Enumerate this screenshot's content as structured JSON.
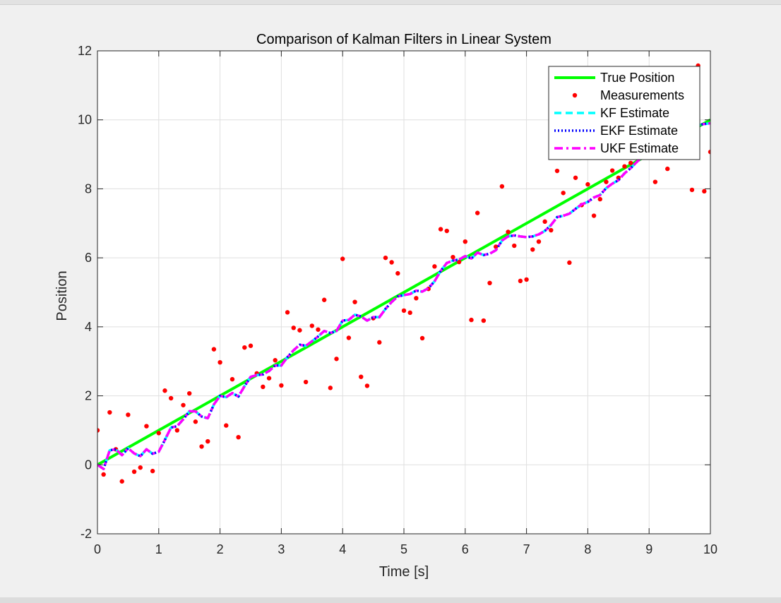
{
  "chart_data": {
    "type": "line",
    "title": "Comparison of Kalman Filters in Linear System",
    "xlabel": "Time [s]",
    "ylabel": "Position",
    "xlim": [
      0,
      10
    ],
    "ylim": [
      -2,
      12
    ],
    "xticks": [
      0,
      1,
      2,
      3,
      4,
      5,
      6,
      7,
      8,
      9,
      10
    ],
    "yticks": [
      -2,
      0,
      2,
      4,
      6,
      8,
      10,
      12
    ],
    "grid": true,
    "legend_position": "top-right",
    "series": [
      {
        "name": "True Position",
        "color": "#00ff00",
        "style": "solid",
        "x": [
          0,
          10
        ],
        "y": [
          0,
          10
        ]
      },
      {
        "name": "Measurements",
        "color": "#ff0000",
        "style": "markers",
        "x": [
          0.0,
          0.1,
          0.2,
          0.3,
          0.4,
          0.5,
          0.6,
          0.7,
          0.8,
          0.9,
          1.0,
          1.1,
          1.2,
          1.3,
          1.4,
          1.5,
          1.6,
          1.7,
          1.8,
          1.9,
          2.0,
          2.1,
          2.2,
          2.3,
          2.4,
          2.5,
          2.6,
          2.7,
          2.8,
          2.9,
          3.0,
          3.1,
          3.2,
          3.3,
          3.4,
          3.5,
          3.6,
          3.7,
          3.8,
          3.9,
          4.0,
          4.1,
          4.2,
          4.3,
          4.4,
          4.5,
          4.6,
          4.7,
          4.8,
          4.9,
          5.0,
          5.1,
          5.2,
          5.3,
          5.4,
          5.5,
          5.6,
          5.7,
          5.8,
          5.9,
          6.0,
          6.1,
          6.2,
          6.3,
          6.4,
          6.5,
          6.6,
          6.7,
          6.8,
          6.9,
          7.0,
          7.1,
          7.2,
          7.3,
          7.4,
          7.5,
          7.6,
          7.7,
          7.8,
          7.9,
          8.0,
          8.1,
          8.2,
          8.3,
          8.4,
          8.5,
          8.6,
          8.7,
          8.8,
          8.9,
          9.0,
          9.1,
          9.2,
          9.3,
          9.4,
          9.5,
          9.6,
          9.7,
          9.8,
          9.9,
          10.0
        ],
        "y": [
          1.0,
          -0.28,
          1.52,
          0.45,
          -0.48,
          1.45,
          -0.2,
          -0.08,
          1.12,
          -0.18,
          0.92,
          2.15,
          1.93,
          1.0,
          1.73,
          2.07,
          1.25,
          0.53,
          0.68,
          3.35,
          2.97,
          1.14,
          2.48,
          0.8,
          3.4,
          3.45,
          2.65,
          2.26,
          2.51,
          3.03,
          2.3,
          4.42,
          3.97,
          3.9,
          2.4,
          4.03,
          3.92,
          4.78,
          2.23,
          3.07,
          5.97,
          3.68,
          4.72,
          2.55,
          2.29,
          4.25,
          3.55,
          6.0,
          5.87,
          5.55,
          4.47,
          4.41,
          4.83,
          3.67,
          5.1,
          5.75,
          6.83,
          6.78,
          6.02,
          5.88,
          6.47,
          4.2,
          7.3,
          4.18,
          5.27,
          6.32,
          8.07,
          6.75,
          6.35,
          5.33,
          5.37,
          6.24,
          6.47,
          7.05,
          6.8,
          8.52,
          7.88,
          5.86,
          8.32,
          7.53,
          8.13,
          7.22,
          7.7,
          8.2,
          8.53,
          8.32,
          8.65,
          8.75,
          9.0,
          9.1,
          9.35,
          8.2,
          9.8,
          8.58,
          9.4,
          9.8,
          10.1,
          7.97,
          11.57,
          7.93,
          9.07
        ]
      },
      {
        "name": "KF Estimate",
        "color": "#00ffff",
        "style": "dashed",
        "x": [
          0.0,
          0.1,
          0.2,
          0.3,
          0.4,
          0.5,
          0.6,
          0.7,
          0.8,
          0.9,
          1.0,
          1.1,
          1.2,
          1.3,
          1.4,
          1.5,
          1.6,
          1.7,
          1.8,
          1.9,
          2.0,
          2.1,
          2.2,
          2.3,
          2.4,
          2.5,
          2.6,
          2.7,
          2.8,
          2.9,
          3.0,
          3.1,
          3.2,
          3.3,
          3.4,
          3.5,
          3.6,
          3.7,
          3.8,
          3.9,
          4.0,
          4.1,
          4.2,
          4.3,
          4.4,
          4.5,
          4.6,
          4.7,
          4.8,
          4.9,
          5.0,
          5.1,
          5.2,
          5.3,
          5.4,
          5.5,
          5.6,
          5.7,
          5.8,
          5.9,
          6.0,
          6.1,
          6.2,
          6.3,
          6.4,
          6.5,
          6.6,
          6.7,
          6.8,
          6.9,
          7.0,
          7.1,
          7.2,
          7.3,
          7.4,
          7.5,
          7.6,
          7.7,
          7.8,
          7.9,
          8.0,
          8.1,
          8.2,
          8.3,
          8.4,
          8.5,
          8.6,
          8.7,
          8.8,
          8.9,
          9.0,
          9.1,
          9.2,
          9.3,
          9.4,
          9.5,
          9.6,
          9.7,
          9.8,
          9.9,
          10.0
        ],
        "y": [
          0.0,
          -0.12,
          0.42,
          0.45,
          0.28,
          0.48,
          0.33,
          0.25,
          0.45,
          0.32,
          0.38,
          0.72,
          1.08,
          1.12,
          1.32,
          1.55,
          1.55,
          1.4,
          1.35,
          1.75,
          2.0,
          1.96,
          2.08,
          1.98,
          2.28,
          2.55,
          2.6,
          2.62,
          2.72,
          2.88,
          2.88,
          3.12,
          3.32,
          3.48,
          3.45,
          3.58,
          3.72,
          3.88,
          3.82,
          3.88,
          4.18,
          4.2,
          4.35,
          4.3,
          4.18,
          4.28,
          4.28,
          4.52,
          4.72,
          4.88,
          4.92,
          4.95,
          5.05,
          5.02,
          5.12,
          5.32,
          5.62,
          5.85,
          5.92,
          5.95,
          6.05,
          5.98,
          6.15,
          6.08,
          6.12,
          6.22,
          6.5,
          6.62,
          6.65,
          6.62,
          6.6,
          6.62,
          6.68,
          6.78,
          6.95,
          7.18,
          7.22,
          7.28,
          7.42,
          7.55,
          7.62,
          7.75,
          7.82,
          8.02,
          8.15,
          8.25,
          8.45,
          8.6,
          8.78,
          8.95,
          9.08,
          9.2,
          9.4,
          9.5,
          9.58,
          9.68,
          9.8,
          9.78,
          9.85,
          9.88,
          9.9
        ]
      },
      {
        "name": "EKF Estimate",
        "color": "#0000ff",
        "style": "dotted",
        "x": [
          0.0,
          0.1,
          0.2,
          0.3,
          0.4,
          0.5,
          0.6,
          0.7,
          0.8,
          0.9,
          1.0,
          1.1,
          1.2,
          1.3,
          1.4,
          1.5,
          1.6,
          1.7,
          1.8,
          1.9,
          2.0,
          2.1,
          2.2,
          2.3,
          2.4,
          2.5,
          2.6,
          2.7,
          2.8,
          2.9,
          3.0,
          3.1,
          3.2,
          3.3,
          3.4,
          3.5,
          3.6,
          3.7,
          3.8,
          3.9,
          4.0,
          4.1,
          4.2,
          4.3,
          4.4,
          4.5,
          4.6,
          4.7,
          4.8,
          4.9,
          5.0,
          5.1,
          5.2,
          5.3,
          5.4,
          5.5,
          5.6,
          5.7,
          5.8,
          5.9,
          6.0,
          6.1,
          6.2,
          6.3,
          6.4,
          6.5,
          6.6,
          6.7,
          6.8,
          6.9,
          7.0,
          7.1,
          7.2,
          7.3,
          7.4,
          7.5,
          7.6,
          7.7,
          7.8,
          7.9,
          8.0,
          8.1,
          8.2,
          8.3,
          8.4,
          8.5,
          8.6,
          8.7,
          8.8,
          8.9,
          9.0,
          9.1,
          9.2,
          9.3,
          9.4,
          9.5,
          9.6,
          9.7,
          9.8,
          9.9,
          10.0
        ],
        "y": [
          0.0,
          -0.12,
          0.42,
          0.45,
          0.28,
          0.48,
          0.33,
          0.25,
          0.45,
          0.32,
          0.38,
          0.72,
          1.08,
          1.12,
          1.32,
          1.55,
          1.55,
          1.4,
          1.35,
          1.75,
          2.0,
          1.96,
          2.08,
          1.98,
          2.28,
          2.55,
          2.6,
          2.62,
          2.72,
          2.88,
          2.88,
          3.12,
          3.32,
          3.48,
          3.45,
          3.58,
          3.72,
          3.88,
          3.82,
          3.88,
          4.18,
          4.2,
          4.35,
          4.3,
          4.18,
          4.28,
          4.28,
          4.52,
          4.72,
          4.88,
          4.92,
          4.95,
          5.05,
          5.02,
          5.12,
          5.32,
          5.62,
          5.85,
          5.92,
          5.95,
          6.05,
          5.98,
          6.15,
          6.08,
          6.12,
          6.22,
          6.5,
          6.62,
          6.65,
          6.62,
          6.6,
          6.62,
          6.68,
          6.78,
          6.95,
          7.18,
          7.22,
          7.28,
          7.42,
          7.55,
          7.62,
          7.75,
          7.82,
          8.02,
          8.15,
          8.25,
          8.45,
          8.6,
          8.78,
          8.95,
          9.08,
          9.2,
          9.4,
          9.5,
          9.58,
          9.68,
          9.8,
          9.78,
          9.85,
          9.88,
          9.9
        ]
      },
      {
        "name": "UKF Estimate",
        "color": "#ff00ff",
        "style": "dashdot",
        "x": [
          0.0,
          0.1,
          0.2,
          0.3,
          0.4,
          0.5,
          0.6,
          0.7,
          0.8,
          0.9,
          1.0,
          1.1,
          1.2,
          1.3,
          1.4,
          1.5,
          1.6,
          1.7,
          1.8,
          1.9,
          2.0,
          2.1,
          2.2,
          2.3,
          2.4,
          2.5,
          2.6,
          2.7,
          2.8,
          2.9,
          3.0,
          3.1,
          3.2,
          3.3,
          3.4,
          3.5,
          3.6,
          3.7,
          3.8,
          3.9,
          4.0,
          4.1,
          4.2,
          4.3,
          4.4,
          4.5,
          4.6,
          4.7,
          4.8,
          4.9,
          5.0,
          5.1,
          5.2,
          5.3,
          5.4,
          5.5,
          5.6,
          5.7,
          5.8,
          5.9,
          6.0,
          6.1,
          6.2,
          6.3,
          6.4,
          6.5,
          6.6,
          6.7,
          6.8,
          6.9,
          7.0,
          7.1,
          7.2,
          7.3,
          7.4,
          7.5,
          7.6,
          7.7,
          7.8,
          7.9,
          8.0,
          8.1,
          8.2,
          8.3,
          8.4,
          8.5,
          8.6,
          8.7,
          8.8,
          8.9,
          9.0,
          9.1,
          9.2,
          9.3,
          9.4,
          9.5,
          9.6,
          9.7,
          9.8,
          9.9,
          10.0
        ],
        "y": [
          0.0,
          -0.12,
          0.42,
          0.45,
          0.28,
          0.48,
          0.33,
          0.25,
          0.45,
          0.32,
          0.38,
          0.72,
          1.08,
          1.12,
          1.32,
          1.55,
          1.55,
          1.4,
          1.35,
          1.75,
          2.0,
          1.96,
          2.08,
          1.98,
          2.28,
          2.55,
          2.6,
          2.62,
          2.72,
          2.88,
          2.88,
          3.12,
          3.32,
          3.48,
          3.45,
          3.58,
          3.72,
          3.88,
          3.82,
          3.88,
          4.18,
          4.2,
          4.35,
          4.3,
          4.18,
          4.28,
          4.28,
          4.52,
          4.72,
          4.88,
          4.92,
          4.95,
          5.05,
          5.02,
          5.12,
          5.32,
          5.62,
          5.85,
          5.92,
          5.95,
          6.05,
          5.98,
          6.15,
          6.08,
          6.12,
          6.22,
          6.5,
          6.62,
          6.65,
          6.62,
          6.6,
          6.62,
          6.68,
          6.78,
          6.95,
          7.18,
          7.22,
          7.28,
          7.42,
          7.55,
          7.62,
          7.75,
          7.82,
          8.02,
          8.15,
          8.25,
          8.45,
          8.6,
          8.78,
          8.95,
          9.08,
          9.2,
          9.4,
          9.5,
          9.58,
          9.68,
          9.8,
          9.78,
          9.85,
          9.88,
          9.9
        ]
      }
    ]
  }
}
